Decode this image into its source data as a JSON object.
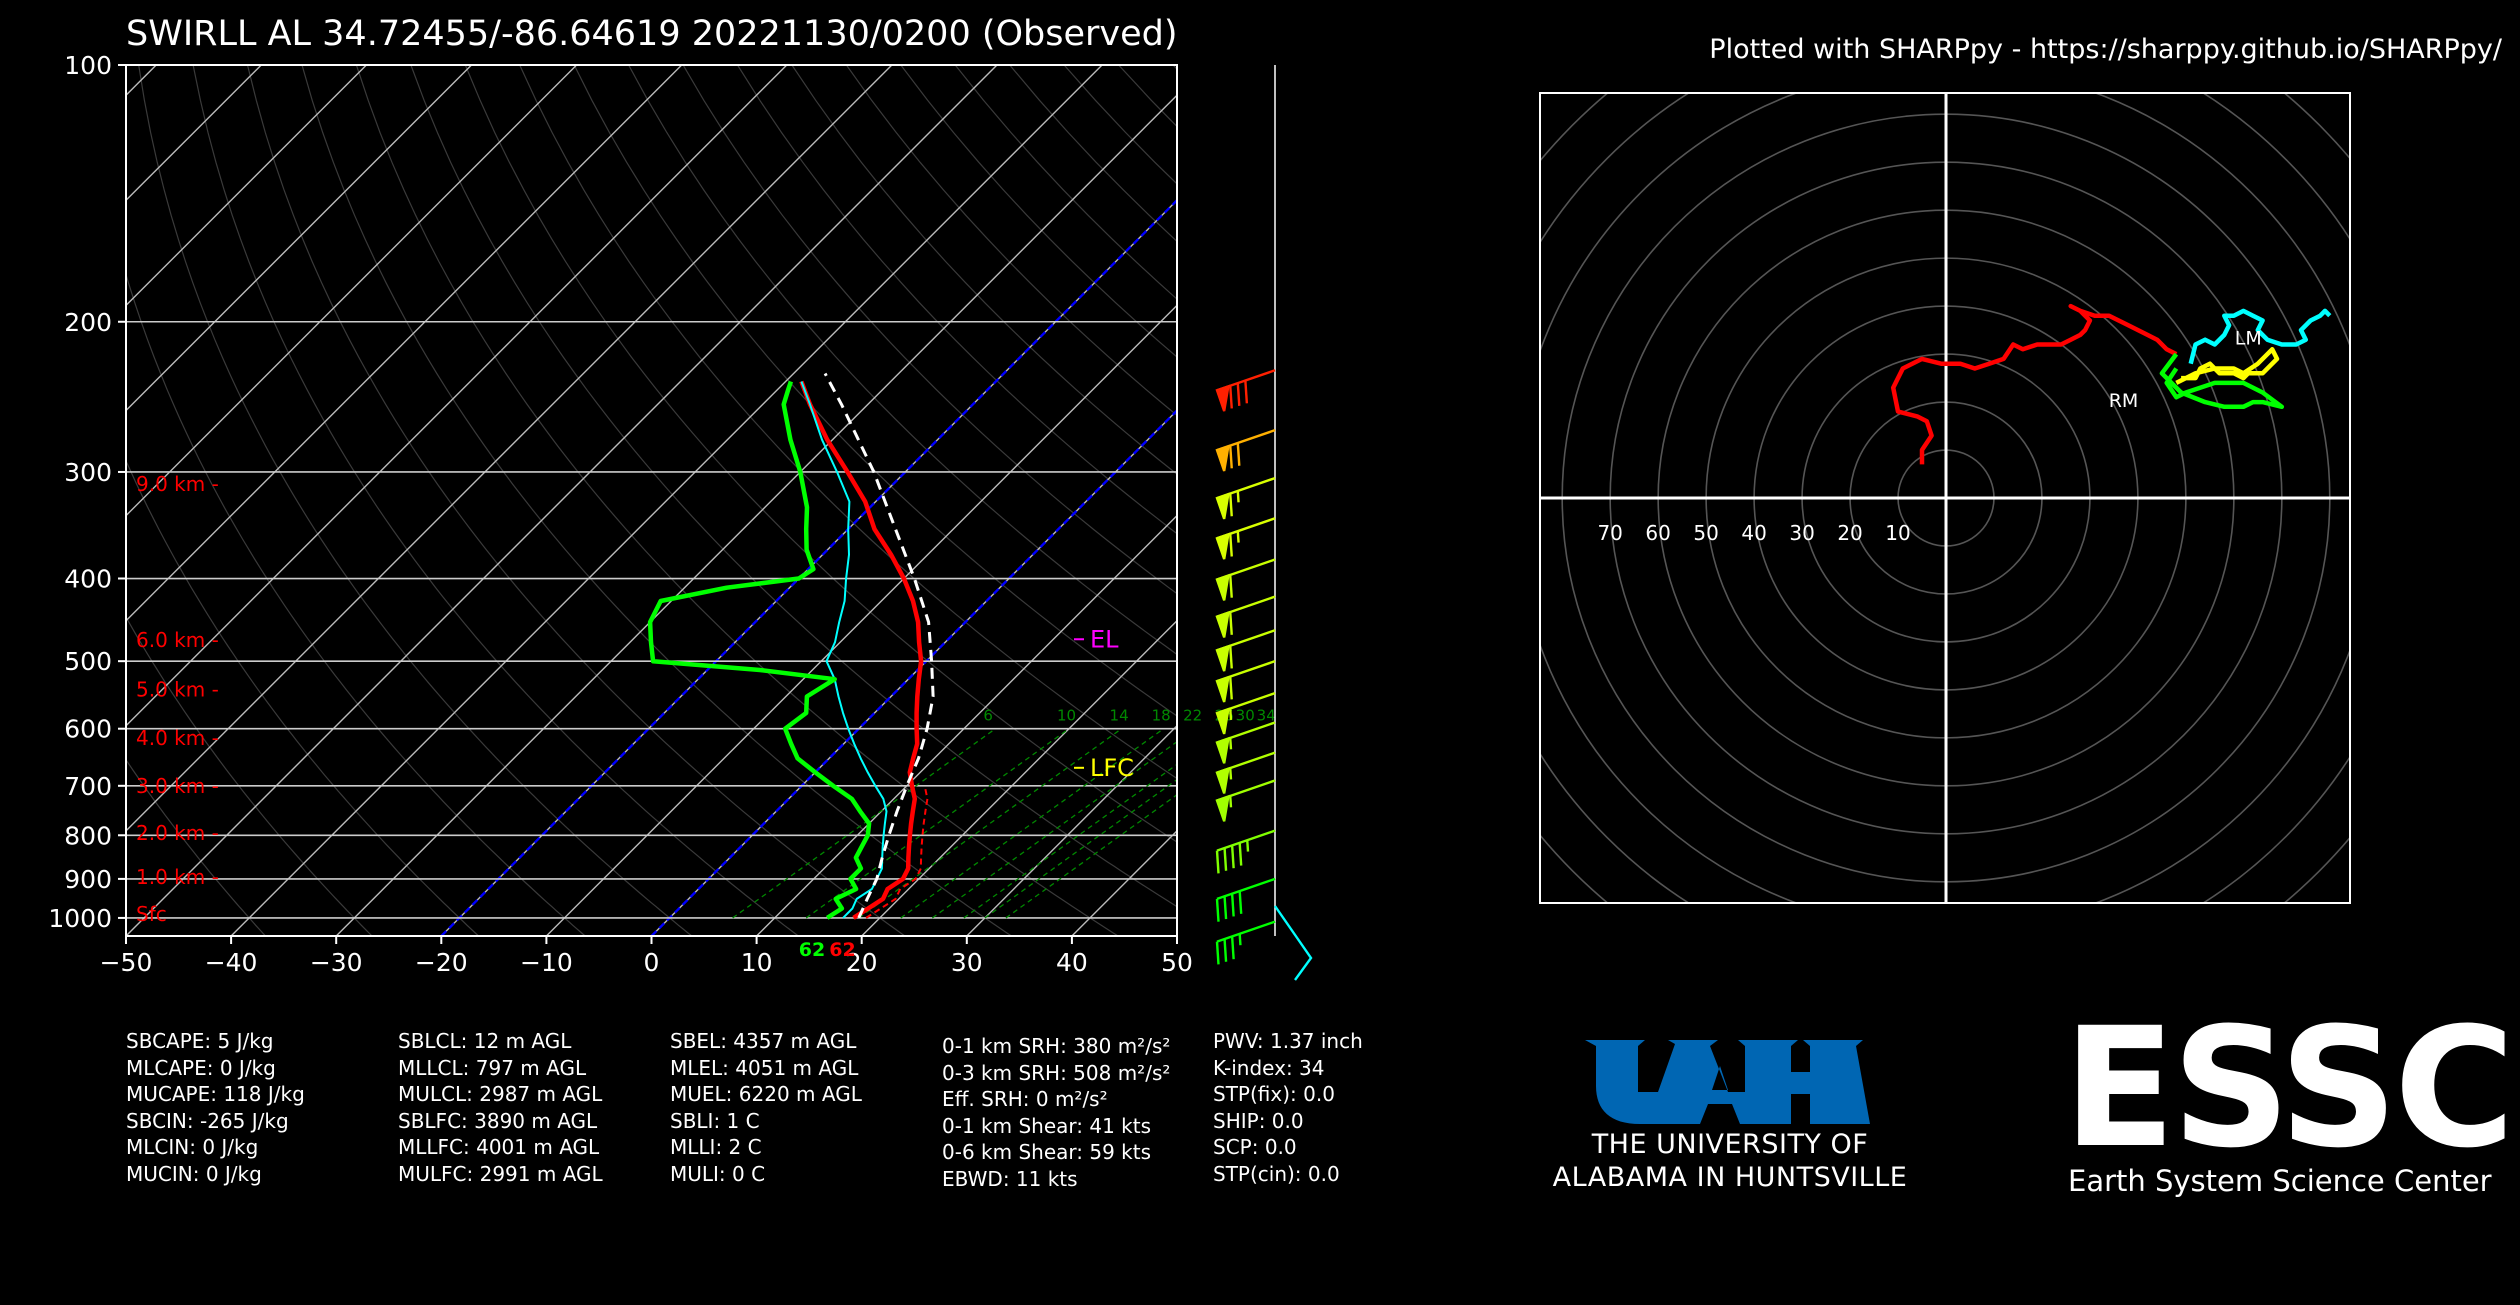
{
  "header": {
    "title": "SWIRLL AL 34.72455/-86.64619   20221130/0200   (Observed)",
    "credit": "Plotted with SHARPpy - https://sharppy.github.io/SHARPpy/"
  },
  "colors": {
    "temperature": "#ff0000",
    "dewpoint": "#00ff00",
    "wetbulb": "#00ffff",
    "parcel": "#ffffff",
    "height_labels": "#ff0000",
    "el": "#ff00ff",
    "lfc": "#ffff00",
    "dry_adiabat_guides": "#0000ff",
    "mixing_ratio": "#008800",
    "uah_blue": "#0066b3"
  },
  "chart_data": [
    {
      "type": "line",
      "name": "skew-t",
      "xlim": [
        -50,
        50
      ],
      "ylim": [
        1050,
        100
      ],
      "y_scale": "log",
      "x_ticks": [
        "−50",
        "−40",
        "−30",
        "−20",
        "−10",
        "0",
        "10",
        "20",
        "30",
        "40",
        "50"
      ],
      "y_ticks": [
        "100",
        "200",
        "300",
        "400",
        "500",
        "600",
        "700",
        "800",
        "900",
        "1000"
      ],
      "y_tick_values": [
        100,
        200,
        300,
        400,
        500,
        600,
        700,
        800,
        900,
        1000
      ],
      "grid": true,
      "height_labels": [
        {
          "text": "Sfc",
          "p": 990
        },
        {
          "text": "1.0 km -",
          "p": 895
        },
        {
          "text": "2.0 km -",
          "p": 795
        },
        {
          "text": "3.0 km -",
          "p": 700
        },
        {
          "text": "4.0 km -",
          "p": 615
        },
        {
          "text": "5.0 km -",
          "p": 540
        },
        {
          "text": "6.0 km -",
          "p": 472
        },
        {
          "text": "9.0 km -",
          "p": 310
        }
      ],
      "mixing_ratio_labels": [
        "6",
        "10",
        "14",
        "18",
        "22",
        "26",
        "30",
        "34"
      ],
      "mixing_ratio_label_x": [
        13,
        20,
        25,
        29,
        32,
        35,
        37,
        39
      ],
      "level_markers": [
        {
          "text": "EL",
          "p": 470
        },
        {
          "text": "LFC",
          "p": 665
        }
      ],
      "surface_labels": {
        "dewpoint": "62",
        "temperature": "62"
      },
      "series": [
        {
          "name": "temperature",
          "p": [
            1000,
            975,
            950,
            925,
            900,
            875,
            850,
            825,
            800,
            775,
            750,
            725,
            700,
            675,
            650,
            625,
            600,
            575,
            550,
            525,
            500,
            475,
            450,
            425,
            400,
            375,
            350,
            325,
            300,
            275,
            250,
            235
          ],
          "t": [
            17.5,
            18.0,
            18.5,
            18.0,
            18.5,
            18.0,
            17.0,
            16.0,
            15.0,
            14.0,
            13.0,
            12.0,
            10.5,
            9.0,
            8.0,
            7.0,
            5.5,
            4.0,
            2.5,
            1.0,
            -0.5,
            -2.5,
            -4.5,
            -7.0,
            -10.0,
            -13.5,
            -17.5,
            -21.0,
            -25.5,
            -30.5,
            -35.5,
            -38.5
          ]
        },
        {
          "name": "wetbulb",
          "p": [
            1000,
            975,
            950,
            925,
            900,
            875,
            850,
            825,
            800,
            775,
            750,
            725,
            700,
            675,
            650,
            625,
            600,
            575,
            550,
            525,
            500,
            475,
            450,
            425,
            400,
            375,
            350,
            325,
            300,
            275,
            250,
            235
          ],
          "t": [
            16.5,
            16.5,
            16.0,
            16.5,
            16.0,
            15.5,
            14.5,
            13.5,
            12.5,
            11.5,
            10.5,
            9.0,
            7.0,
            5.0,
            3.0,
            1.0,
            -1.0,
            -3.0,
            -5.0,
            -7.0,
            -9.5,
            -10.5,
            -12.0,
            -13.5,
            -15.5,
            -17.5,
            -20.0,
            -22.5,
            -26.5,
            -31.0,
            -35.5,
            -38.5
          ]
        },
        {
          "name": "dewpoint",
          "p": [
            1000,
            975,
            950,
            925,
            900,
            875,
            850,
            825,
            800,
            775,
            750,
            725,
            700,
            675,
            650,
            625,
            600,
            575,
            550,
            525,
            512,
            500,
            475,
            450,
            425,
            410,
            400,
            390,
            370,
            350,
            330,
            300,
            275,
            250,
            240,
            235
          ],
          "t": [
            15.0,
            15.5,
            14.0,
            15.0,
            13.5,
            13.5,
            12.0,
            11.5,
            11.0,
            10.0,
            8.0,
            6.0,
            3.0,
            0.0,
            -3.0,
            -5.0,
            -7.0,
            -6.5,
            -8.0,
            -7.0,
            -15.0,
            -26.0,
            -28.0,
            -30.0,
            -31.0,
            -26.0,
            -20.0,
            -19.5,
            -22.0,
            -24.0,
            -26.0,
            -30.0,
            -34.0,
            -38.0,
            -39.0,
            -39.5
          ]
        },
        {
          "name": "parcel",
          "p": [
            1000,
            950,
            900,
            850,
            800,
            750,
            700,
            650,
            600,
            550,
            500,
            450,
            400,
            350,
            300,
            250,
            230
          ],
          "t": [
            18.0,
            17.0,
            16.0,
            14.5,
            13.0,
            11.5,
            10.0,
            8.5,
            6.5,
            4.0,
            0.5,
            -3.5,
            -9.0,
            -15.5,
            -23.0,
            -32.5,
            -37.0
          ]
        }
      ]
    },
    {
      "type": "line",
      "name": "hodograph",
      "xlim": [
        -80,
        80
      ],
      "ylim": [
        -80,
        80
      ],
      "ring_step": 10,
      "ring_labels": [
        "70",
        "60",
        "50",
        "40",
        "30",
        "20",
        "10"
      ],
      "ring_label_values": [
        -70,
        -60,
        -50,
        -40,
        -30,
        -20,
        -10
      ],
      "markers": [
        {
          "text": "LM",
          "u": 63,
          "v": 32
        },
        {
          "text": "RM",
          "u": 37,
          "v": 19
        }
      ],
      "series": [
        {
          "name": "0-3 km",
          "color": "#ff0000",
          "u": [
            -5,
            -5,
            -3,
            -4,
            -6,
            -10,
            -11,
            -9,
            -5,
            -1,
            3,
            6,
            9,
            12,
            14,
            16,
            19,
            22,
            24,
            26,
            28,
            29,
            30,
            28,
            26,
            28,
            31,
            34,
            38,
            42,
            44,
            46,
            48
          ],
          "v": [
            7,
            10,
            13,
            16,
            17,
            18,
            23,
            27,
            29,
            28,
            28,
            27,
            28,
            29,
            32,
            31,
            32,
            32,
            32,
            33,
            34,
            35,
            37,
            39,
            40,
            39,
            38,
            38,
            36,
            34,
            33,
            31,
            30
          ]
        },
        {
          "name": "3-6 km",
          "color": "#00ff00",
          "u": [
            48,
            45,
            49,
            54,
            58,
            62,
            64,
            66,
            70,
            66,
            62,
            56,
            50,
            48,
            46,
            48
          ],
          "v": [
            30,
            26,
            22,
            20,
            19,
            19,
            20,
            20,
            19,
            22,
            24,
            24,
            22,
            21,
            24,
            27
          ]
        },
        {
          "name": "6-9 km",
          "color": "#ffff00",
          "u": [
            48,
            52,
            56,
            60,
            62,
            65,
            68,
            69,
            66,
            63,
            62,
            60,
            57,
            55,
            53,
            52,
            49
          ],
          "v": [
            24,
            26,
            27,
            27,
            26,
            28,
            31,
            29,
            26,
            26,
            25,
            26,
            26,
            28,
            27,
            25,
            25
          ]
        },
        {
          "name": "9+ km",
          "color": "#00ffff",
          "u": [
            51,
            52,
            54,
            56,
            58,
            59,
            58,
            60,
            62,
            64,
            66,
            65,
            67,
            70,
            73,
            75,
            74,
            76,
            78,
            79,
            80
          ],
          "v": [
            28,
            32,
            33,
            32,
            34,
            36,
            38,
            38,
            39,
            38,
            37,
            35,
            33,
            32,
            32,
            33,
            35,
            37,
            38,
            39,
            38
          ]
        }
      ]
    }
  ],
  "wind_barbs": [
    {
      "color": "#ff2000",
      "speed": 80,
      "p": 228
    },
    {
      "color": "#ffb000",
      "speed": 70,
      "p": 268
    },
    {
      "color": "#d8ff00",
      "speed": 65,
      "p": 305
    },
    {
      "color": "#d8ff00",
      "speed": 65,
      "p": 340
    },
    {
      "color": "#c8ff00",
      "speed": 60,
      "p": 380
    },
    {
      "color": "#c8ff00",
      "speed": 60,
      "p": 420
    },
    {
      "color": "#c8ff00",
      "speed": 60,
      "p": 460
    },
    {
      "color": "#c8ff00",
      "speed": 60,
      "p": 500
    },
    {
      "color": "#c8ff00",
      "speed": 55,
      "p": 545
    },
    {
      "color": "#b0ff00",
      "speed": 55,
      "p": 590
    },
    {
      "color": "#b0ff00",
      "speed": 55,
      "p": 640
    },
    {
      "color": "#a0ff00",
      "speed": 55,
      "p": 690
    },
    {
      "color": "#80ff00",
      "speed": 45,
      "p": 790
    },
    {
      "color": "#00ff00",
      "speed": 40,
      "p": 900
    },
    {
      "color": "#00ff00",
      "speed": 35,
      "p": 1010
    }
  ],
  "indices": {
    "col1": [
      "SBCAPE: 5 J/kg",
      "MLCAPE: 0 J/kg",
      "MUCAPE: 118 J/kg",
      "SBCIN: -265 J/kg",
      "MLCIN: 0 J/kg",
      "MUCIN: 0 J/kg"
    ],
    "col2": [
      "SBLCL: 12 m AGL",
      "MLLCL: 797 m AGL",
      "MULCL: 2987 m AGL",
      "SBLFC: 3890 m AGL",
      "MLLFC: 4001 m AGL",
      "MULFC: 2991 m AGL"
    ],
    "col3": [
      "SBEL: 4357 m AGL",
      "MLEL: 4051 m AGL",
      "MUEL: 6220 m AGL",
      "SBLI: 1 C",
      "MLLI: 2 C",
      "MULI: 0 C"
    ],
    "col4": [
      "0-1 km SRH: 380 m²/s²",
      "0-3 km SRH: 508 m²/s²",
      "Eff. SRH: 0 m²/s²",
      "0-1 km Shear: 41 kts",
      "0-6 km Shear: 59 kts",
      "EBWD: 11 kts"
    ],
    "col5": [
      "PWV: 1.37 inch",
      "K-index: 34",
      "STP(fix): 0.0",
      "SHIP: 0.0",
      "SCP: 0.0",
      "STP(cin): 0.0"
    ]
  },
  "logos": {
    "uah_line1": "THE UNIVERSITY OF",
    "uah_line2": "ALABAMA IN HUNTSVILLE",
    "essc_big": "ESSC",
    "essc_sub": "Earth System Science Center"
  }
}
